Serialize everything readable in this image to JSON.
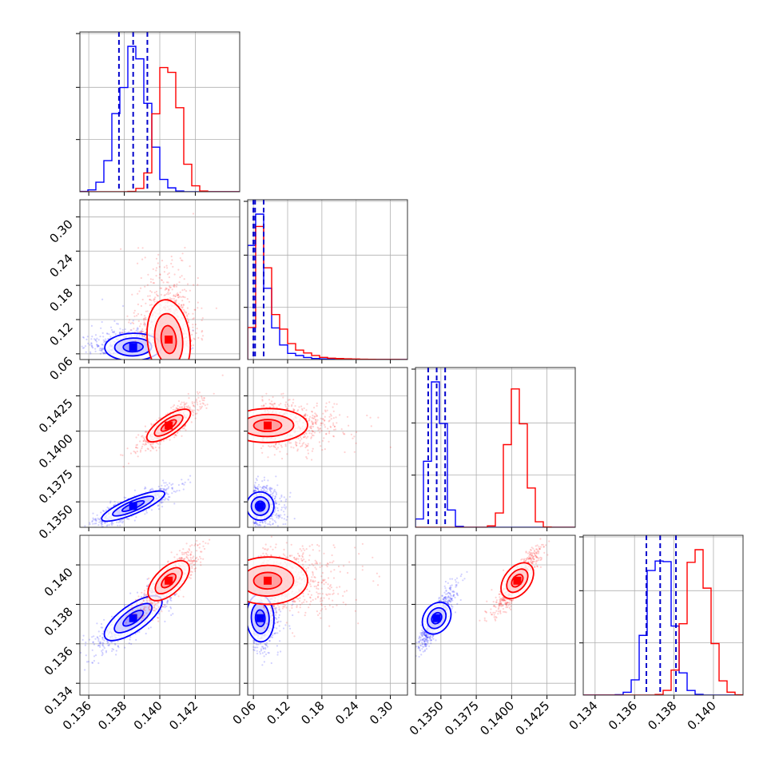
{
  "chart_data": {
    "type": "corner",
    "grid": true,
    "parameters": 4,
    "series": [
      {
        "color": "#0000ff"
      },
      {
        "color": "#ff0000"
      }
    ],
    "axes": [
      {
        "range": [
          0.1355,
          0.1445
        ],
        "ticks": [
          0.136,
          0.138,
          0.14,
          0.142
        ],
        "tick_labels": [
          "0.136",
          "0.138",
          "0.140",
          "0.142"
        ]
      },
      {
        "range": [
          0.05,
          0.33
        ],
        "ticks": [
          0.06,
          0.12,
          0.18,
          0.24,
          0.3
        ],
        "tick_labels": [
          "0.06",
          "0.12",
          "0.18",
          "0.24",
          "0.30"
        ]
      },
      {
        "range": [
          0.1332,
          0.1445
        ],
        "ticks": [
          0.135,
          0.1375,
          0.14,
          0.1425
        ],
        "tick_labels": [
          "0.1350",
          "0.1375",
          "0.1400",
          "0.1425"
        ]
      },
      {
        "range": [
          0.1334,
          0.1415
        ],
        "ticks": [
          0.134,
          0.136,
          0.138,
          0.14
        ],
        "tick_labels": [
          "0.134",
          "0.136",
          "0.138",
          "0.140"
        ]
      }
    ],
    "marginals": [
      {
        "param": 0,
        "quantiles": [
          0.1377,
          0.1385,
          0.1393
        ],
        "series": [
          {
            "color": "#0000ff",
            "mean": 0.1385,
            "sd": 0.0008
          },
          {
            "color": "#ff0000",
            "mean": 0.1405,
            "sd": 0.0006
          }
        ]
      },
      {
        "param": 1,
        "quantiles": [
          0.06,
          0.063,
          0.078
        ],
        "series": [
          {
            "color": "#0000ff",
            "mean": 0.072,
            "sd": 0.016
          },
          {
            "color": "#ff0000",
            "mean": 0.082,
            "sd": 0.028
          }
        ]
      },
      {
        "param": 2,
        "quantiles": [
          0.1341,
          0.1347,
          0.1353
        ],
        "series": [
          {
            "color": "#0000ff",
            "mean": 0.1347,
            "sd": 0.0005
          },
          {
            "color": "#ff0000",
            "mean": 0.1404,
            "sd": 0.0006
          }
        ]
      },
      {
        "param": 3,
        "quantiles": [
          0.1366,
          0.1373,
          0.1381
        ],
        "series": [
          {
            "color": "#0000ff",
            "mean": 0.1373,
            "sd": 0.0006
          },
          {
            "color": "#ff0000",
            "mean": 0.1392,
            "sd": 0.0006
          }
        ]
      }
    ],
    "joint": [
      {
        "x_param": 0,
        "y_param": 1,
        "series": [
          {
            "color": "#0000ff",
            "center": [
              0.1385,
              0.072
            ],
            "spread": [
              0.0008,
              0.012
            ],
            "corr": 0.2
          },
          {
            "color": "#ff0000",
            "center": [
              0.1405,
              0.085
            ],
            "spread": [
              0.0006,
              0.035
            ],
            "corr": 0.2
          }
        ]
      },
      {
        "x_param": 0,
        "y_param": 2,
        "series": [
          {
            "color": "#0000ff",
            "center": [
              0.1385,
              0.1347
            ],
            "spread": [
              0.0008,
              0.0005
            ],
            "corr": 0.85
          },
          {
            "color": "#ff0000",
            "center": [
              0.1405,
              0.1404
            ],
            "spread": [
              0.0006,
              0.0006
            ],
            "corr": 0.85
          }
        ]
      },
      {
        "x_param": 1,
        "y_param": 2,
        "series": [
          {
            "color": "#0000ff",
            "center": [
              0.072,
              0.1347
            ],
            "spread": [
              0.012,
              0.0005
            ],
            "corr": 0.1
          },
          {
            "color": "#ff0000",
            "center": [
              0.085,
              0.1404
            ],
            "spread": [
              0.035,
              0.0006
            ],
            "corr": 0.1
          }
        ]
      },
      {
        "x_param": 0,
        "y_param": 3,
        "series": [
          {
            "color": "#0000ff",
            "center": [
              0.1385,
              0.1373
            ],
            "spread": [
              0.0008,
              0.0006
            ],
            "corr": 0.85
          },
          {
            "color": "#ff0000",
            "center": [
              0.1405,
              0.1392
            ],
            "spread": [
              0.0006,
              0.0006
            ],
            "corr": 0.85
          }
        ]
      },
      {
        "x_param": 1,
        "y_param": 3,
        "series": [
          {
            "color": "#0000ff",
            "center": [
              0.072,
              0.1373
            ],
            "spread": [
              0.012,
              0.0006
            ],
            "corr": 0.1
          },
          {
            "color": "#ff0000",
            "center": [
              0.085,
              0.1392
            ],
            "spread": [
              0.035,
              0.0006
            ],
            "corr": 0.1
          }
        ]
      },
      {
        "x_param": 2,
        "y_param": 3,
        "series": [
          {
            "color": "#0000ff",
            "center": [
              0.1347,
              0.1373
            ],
            "spread": [
              0.0005,
              0.0006
            ],
            "corr": 0.9
          },
          {
            "color": "#ff0000",
            "center": [
              0.1404,
              0.1392
            ],
            "spread": [
              0.0006,
              0.0006
            ],
            "corr": 0.9
          }
        ]
      }
    ]
  }
}
